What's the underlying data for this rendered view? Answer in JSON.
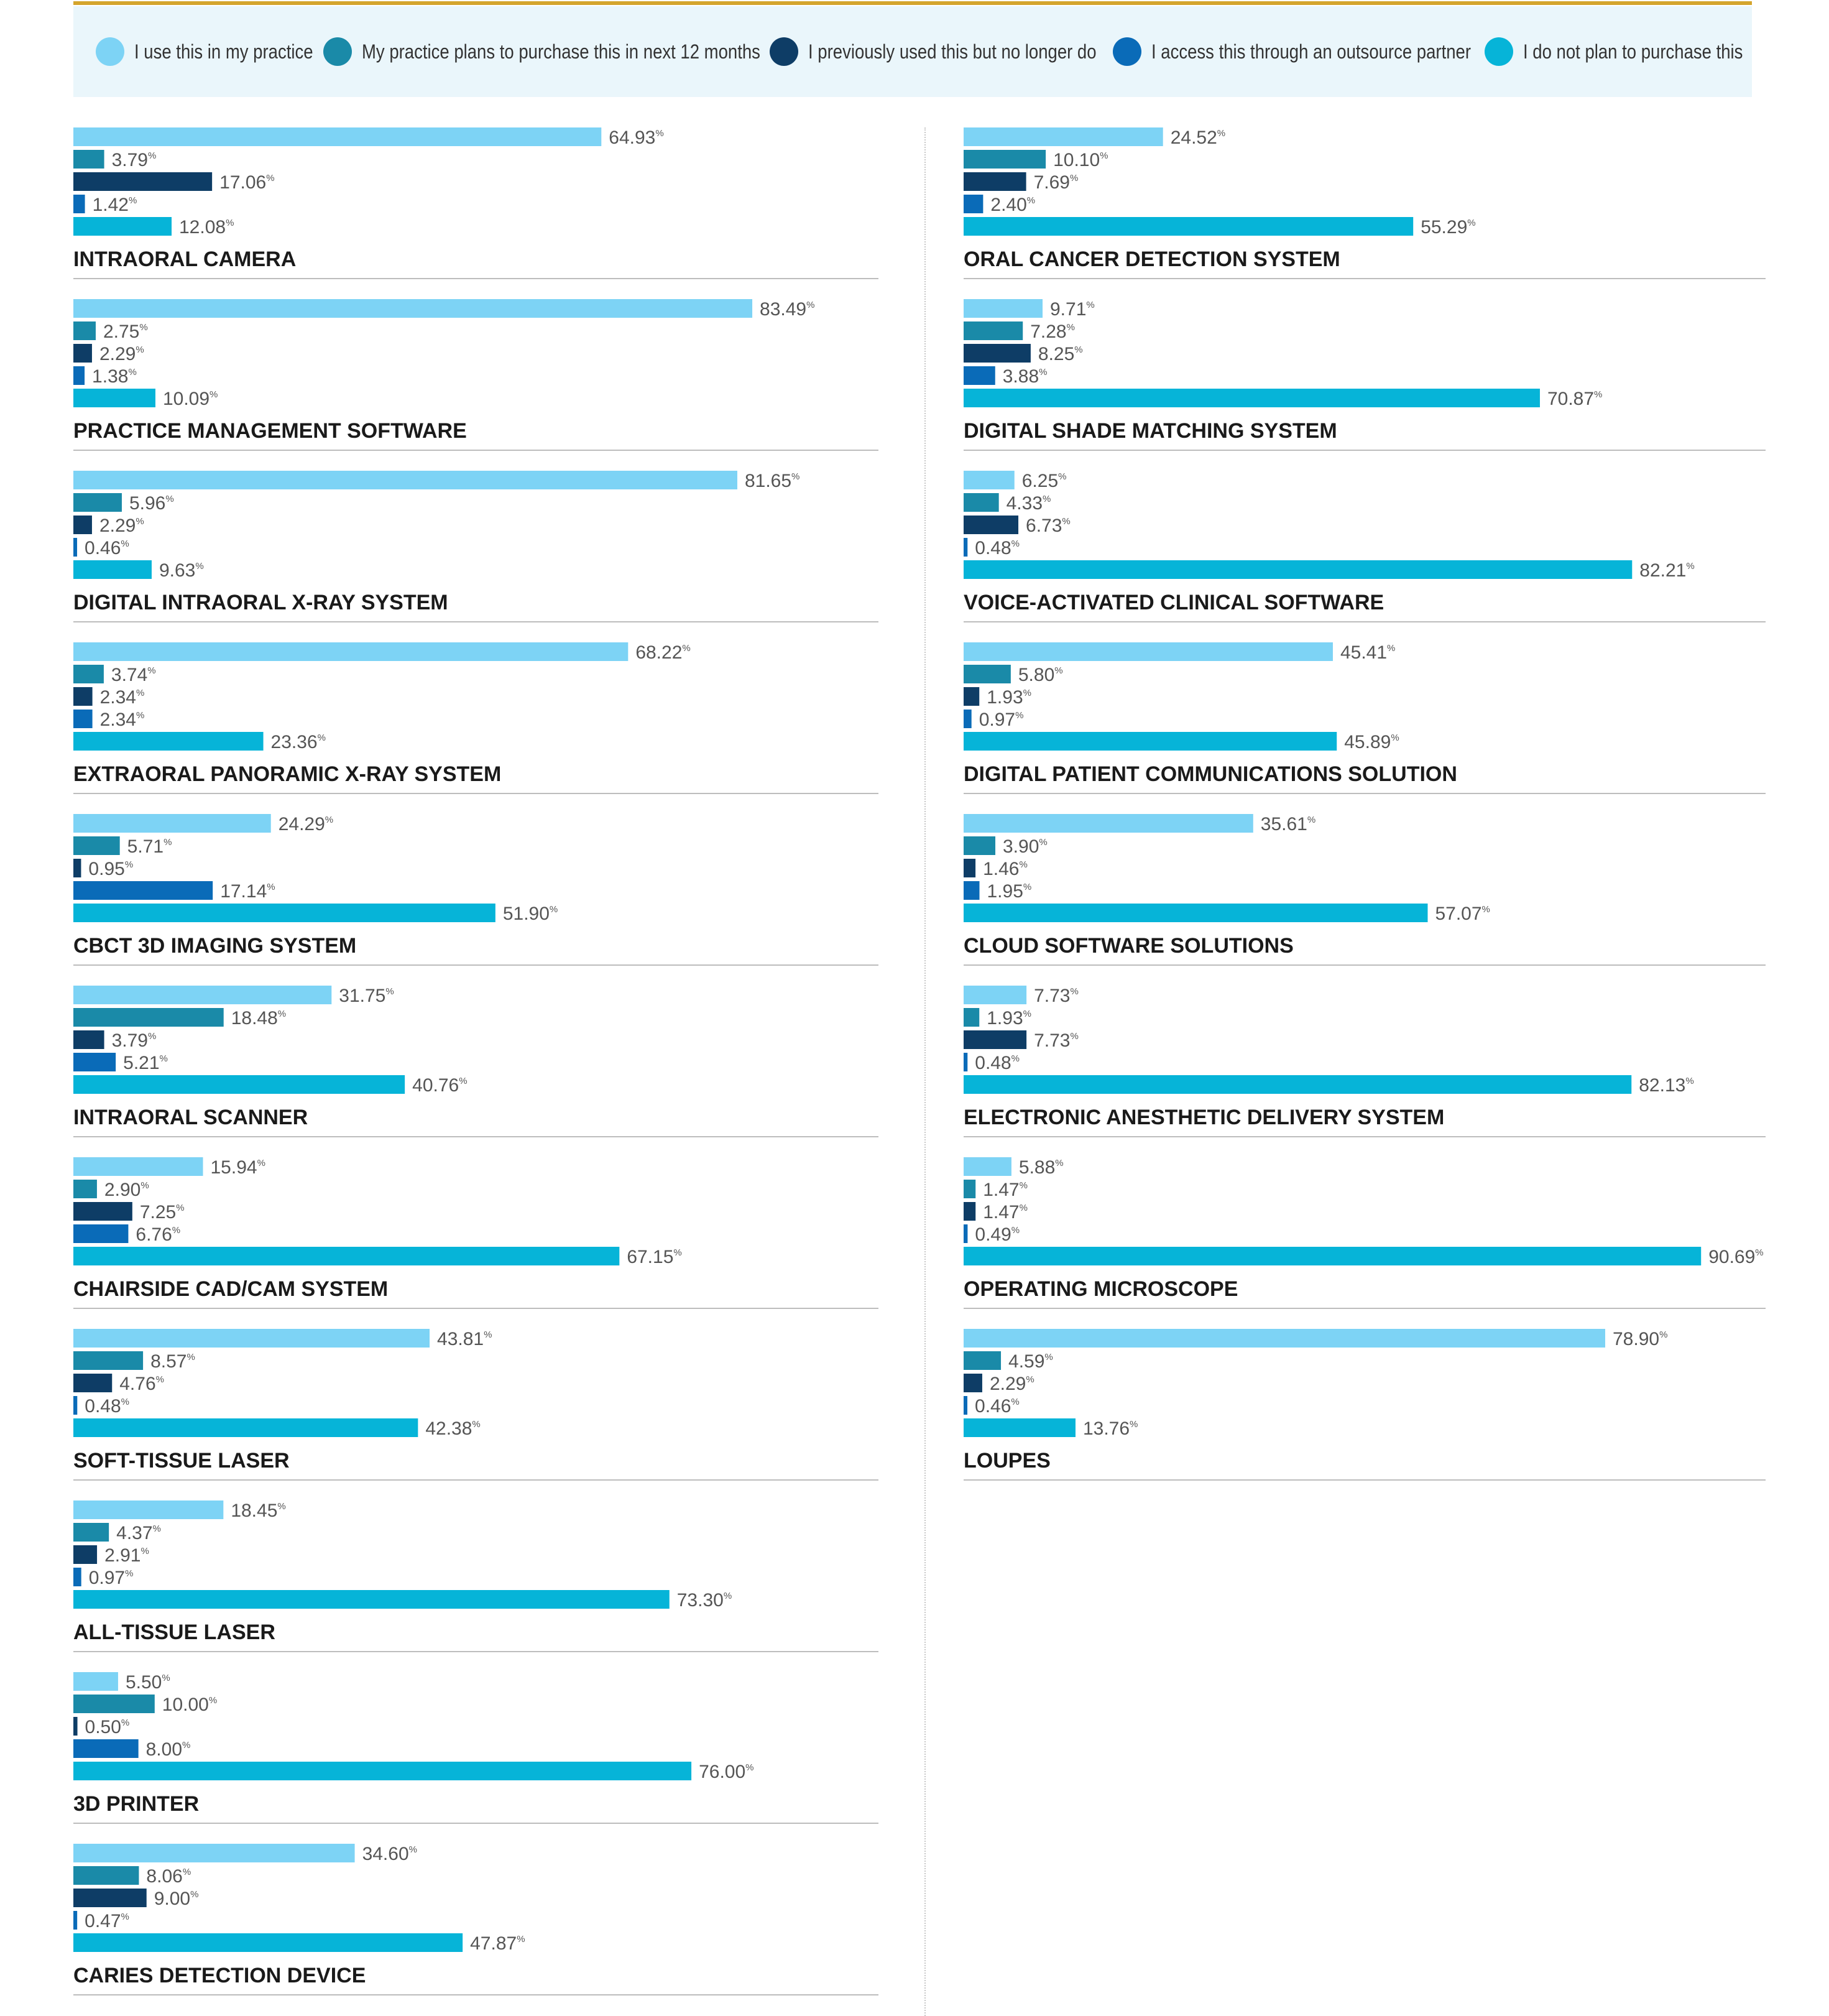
{
  "legend": [
    {
      "label": "I use this in my practice",
      "color": "#7dd3f5"
    },
    {
      "label": "My practice plans to purchase this in next 12 months",
      "color": "#1a8aa8"
    },
    {
      "label": "I previously used this but no longer do",
      "color": "#0e3d66"
    },
    {
      "label": "I access this through an outsource partner",
      "color": "#0a6bb8"
    },
    {
      "label": "I do not plan to purchase this",
      "color": "#06b4d8"
    }
  ],
  "chart_data": {
    "type": "bar",
    "orientation": "horizontal",
    "unit": "%",
    "xlim": [
      0,
      100
    ],
    "series": [
      {
        "name": "I use this in my practice",
        "color": "#7dd3f5"
      },
      {
        "name": "My practice plans to purchase this in next 12 months",
        "color": "#1a8aa8"
      },
      {
        "name": "I previously used this but no longer do",
        "color": "#0e3d66"
      },
      {
        "name": "I access this through an outsource partner",
        "color": "#0a6bb8"
      },
      {
        "name": "I do not plan to purchase this",
        "color": "#06b4d8"
      }
    ],
    "groups": [
      {
        "category": "INTRAORAL CAMERA",
        "column": "left",
        "values": [
          64.93,
          3.79,
          17.06,
          1.42,
          12.08
        ]
      },
      {
        "category": "PRACTICE MANAGEMENT SOFTWARE",
        "column": "left",
        "values": [
          83.49,
          2.75,
          2.29,
          1.38,
          10.09
        ]
      },
      {
        "category": "DIGITAL INTRAORAL X-RAY SYSTEM",
        "column": "left",
        "values": [
          81.65,
          5.96,
          2.29,
          0.46,
          9.63
        ]
      },
      {
        "category": "EXTRAORAL PANORAMIC X-RAY SYSTEM",
        "column": "left",
        "values": [
          68.22,
          3.74,
          2.34,
          2.34,
          23.36
        ]
      },
      {
        "category": "CBCT 3D IMAGING SYSTEM",
        "column": "left",
        "values": [
          24.29,
          5.71,
          0.95,
          17.14,
          51.9
        ]
      },
      {
        "category": "INTRAORAL SCANNER",
        "column": "left",
        "values": [
          31.75,
          18.48,
          3.79,
          5.21,
          40.76
        ]
      },
      {
        "category": "CHAIRSIDE CAD/CAM SYSTEM",
        "column": "left",
        "values": [
          15.94,
          2.9,
          7.25,
          6.76,
          67.15
        ]
      },
      {
        "category": "SOFT-TISSUE LASER",
        "column": "left",
        "values": [
          43.81,
          8.57,
          4.76,
          0.48,
          42.38
        ]
      },
      {
        "category": "ALL-TISSUE LASER",
        "column": "left",
        "values": [
          18.45,
          4.37,
          2.91,
          0.97,
          73.3
        ]
      },
      {
        "category": "3D PRINTER",
        "column": "left",
        "values": [
          5.5,
          10.0,
          0.5,
          8.0,
          76.0
        ]
      },
      {
        "category": "CARIES DETECTION DEVICE",
        "column": "left",
        "values": [
          34.6,
          8.06,
          9.0,
          0.47,
          47.87
        ]
      },
      {
        "category": "ORAL CANCER DETECTION SYSTEM",
        "column": "right",
        "values": [
          24.52,
          10.1,
          7.69,
          2.4,
          55.29
        ]
      },
      {
        "category": "DIGITAL SHADE MATCHING SYSTEM",
        "column": "right",
        "values": [
          9.71,
          7.28,
          8.25,
          3.88,
          70.87
        ]
      },
      {
        "category": "VOICE-ACTIVATED CLINICAL SOFTWARE",
        "column": "right",
        "values": [
          6.25,
          4.33,
          6.73,
          0.48,
          82.21
        ]
      },
      {
        "category": "DIGITAL PATIENT COMMUNICATIONS SOLUTION",
        "column": "right",
        "values": [
          45.41,
          5.8,
          1.93,
          0.97,
          45.89
        ]
      },
      {
        "category": "CLOUD SOFTWARE SOLUTIONS",
        "column": "right",
        "values": [
          35.61,
          3.9,
          1.46,
          1.95,
          57.07
        ]
      },
      {
        "category": "ELECTRONIC ANESTHETIC DELIVERY SYSTEM",
        "column": "right",
        "values": [
          7.73,
          1.93,
          7.73,
          0.48,
          82.13
        ]
      },
      {
        "category": "OPERATING MICROSCOPE",
        "column": "right",
        "values": [
          5.88,
          1.47,
          1.47,
          0.49,
          90.69
        ]
      },
      {
        "category": "LOUPES",
        "column": "right",
        "values": [
          78.9,
          4.59,
          2.29,
          0.46,
          13.76
        ]
      }
    ]
  }
}
